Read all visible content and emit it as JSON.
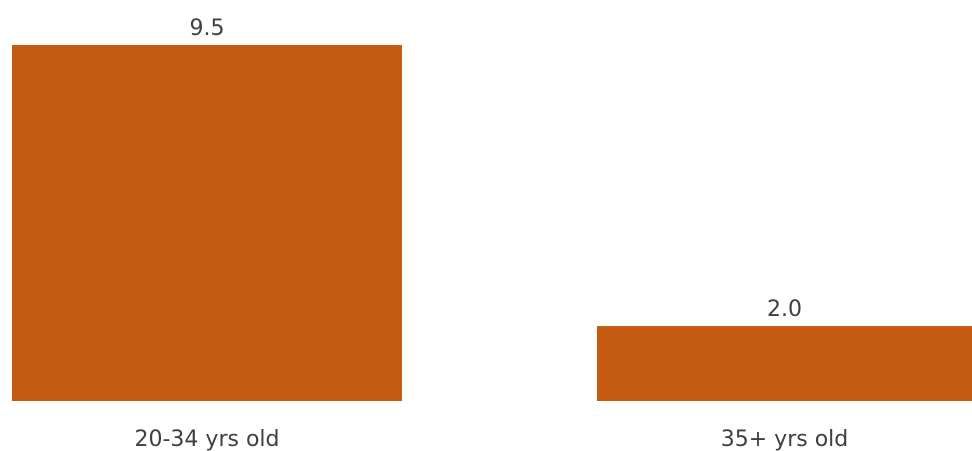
{
  "chart_data": {
    "type": "bar",
    "categories": [
      "20-34 yrs old",
      "35+ yrs old"
    ],
    "values": [
      9.5,
      2.0
    ],
    "value_labels": [
      "9.5",
      "2.0"
    ],
    "title": "",
    "xlabel": "",
    "ylabel": "",
    "ylim": [
      0,
      9.5
    ],
    "grid": false,
    "legend": "none",
    "bar_color": "#C55A11"
  }
}
